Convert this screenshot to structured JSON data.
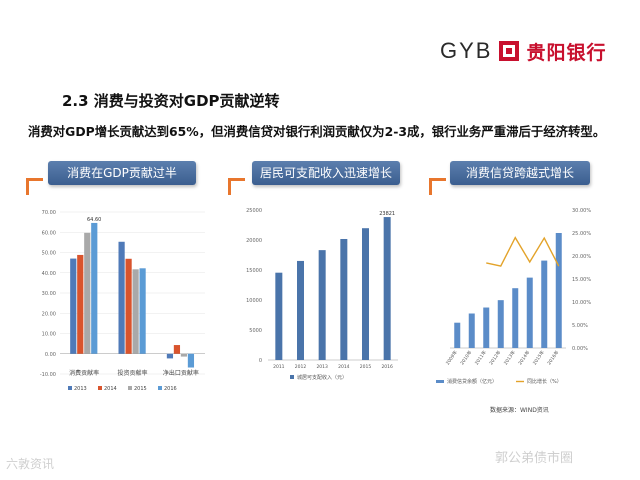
{
  "header": {
    "logo_text": "GYB",
    "bank_name": "贵阳银行",
    "brand_color": "#c8102e"
  },
  "section_title": "2.3  消费与投资对GDP贡献逆转",
  "subtitle": "消费对GDP增长贡献达到65%，但消费信贷对银行利润贡献仅为2-3成，银行业务严重滞后于经济转型。",
  "panels": [
    {
      "title": "消费在GDP贡献过半"
    },
    {
      "title": "居民可支配收入迅速增长"
    },
    {
      "title": "消费信贷跨越式增长"
    }
  ],
  "source": "数据来源：WIND资讯",
  "watermarks": {
    "left": "六敦资讯",
    "right": "郭公弟债市圈"
  },
  "colors": {
    "accent": "#e8762d",
    "y2013": "#4f7ab8",
    "y2014": "#d9542d",
    "y2015": "#a9a9a9",
    "y2016": "#5b9bd5",
    "income": "#4a74aa",
    "credit_bar": "#5b8cc8",
    "credit_line": "#e3a32a"
  },
  "chart_data": [
    {
      "type": "bar",
      "categories": [
        "消费贡献率",
        "投资贡献率",
        "净出口贡献率"
      ],
      "series": [
        {
          "name": "2013",
          "values": [
            47.0,
            55.3,
            -2.3
          ]
        },
        {
          "name": "2014",
          "values": [
            48.8,
            46.9,
            4.3
          ]
        },
        {
          "name": "2015",
          "values": [
            59.7,
            41.7,
            -1.4
          ]
        },
        {
          "name": "2016",
          "values": [
            64.6,
            42.2,
            -6.8
          ]
        }
      ],
      "data_labels": [
        "64.60"
      ],
      "ylim": [
        -10,
        70
      ],
      "yticks": [
        "-10.00",
        "0.00",
        "10.00",
        "20.00",
        "30.00",
        "40.00",
        "50.00",
        "60.00",
        "70.00"
      ],
      "legend": "bottom"
    },
    {
      "type": "bar",
      "categories": [
        "2011",
        "2012",
        "2013",
        "2014",
        "2015",
        "2016"
      ],
      "values": [
        14551,
        16510,
        18311,
        20167,
        21966,
        23821
      ],
      "data_labels": [
        "23821"
      ],
      "ylim": [
        0,
        25000
      ],
      "yticks": [
        "0",
        "5000",
        "10000",
        "15000",
        "20000",
        "25000"
      ],
      "legend": "bottom",
      "legend_entry": "城居可支配收入（元）"
    },
    {
      "type": "bar+line",
      "categories": [
        "2009年",
        "2010年",
        "2011年",
        "2012年",
        "2013年",
        "2014年",
        "2015年",
        "2016年"
      ],
      "series": [
        {
          "name": "消费信贷余额（亿元）",
          "axis": "left",
          "values": [
            55000,
            75000,
            88000,
            104000,
            130000,
            153000,
            190000,
            250000
          ]
        },
        {
          "name": "同比增长（%）",
          "axis": "right",
          "values": [
            null,
            null,
            18.5,
            17.8,
            24.0,
            18.7,
            23.9,
            17.8
          ]
        }
      ],
      "ylim_left": [
        0,
        300000
      ],
      "ylim_right": [
        0,
        30
      ],
      "yticks_right": [
        "0.00%",
        "5.00%",
        "10.00%",
        "15.00%",
        "20.00%",
        "25.00%",
        "30.00%"
      ],
      "legend": "bottom"
    }
  ]
}
